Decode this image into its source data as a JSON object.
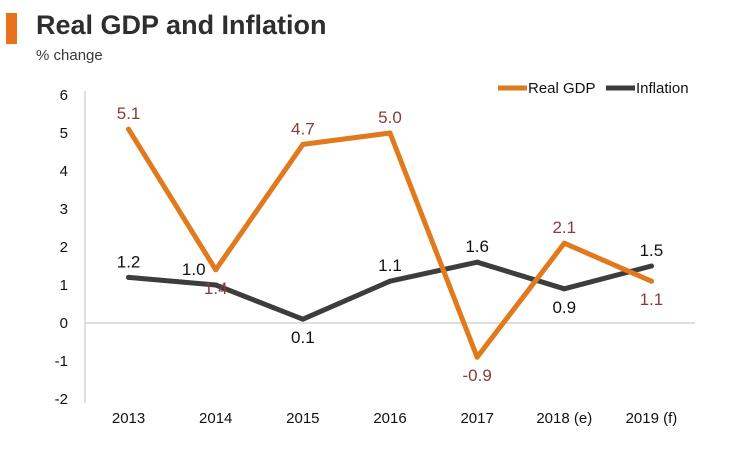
{
  "header": {
    "title": "Real GDP and Inflation",
    "subtitle": "% change"
  },
  "colors": {
    "accent": "#e8711c",
    "gdp": "#e07a1d",
    "inflation": "#3d3d3d",
    "gdp_label": "#8b3a3a",
    "inflation_label": "#111111",
    "axis_text": "#111111",
    "axis_line": "#bfbfbf"
  },
  "chart_data": {
    "type": "line",
    "categories": [
      "2013",
      "2014",
      "2015",
      "2016",
      "2017",
      "2018 (e)",
      "2019 (f)"
    ],
    "series": [
      {
        "name": "Real GDP",
        "values": [
          5.1,
          1.4,
          4.7,
          5.0,
          -0.9,
          2.1,
          1.1
        ],
        "labels": [
          "5.1",
          "1.4",
          "4.7",
          "5.0",
          "-0.9",
          "2.1",
          "1.1"
        ]
      },
      {
        "name": "Inflation",
        "values": [
          1.2,
          1.0,
          0.1,
          1.1,
          1.6,
          0.9,
          1.5
        ],
        "labels": [
          "1.2",
          "1.0",
          "0.1",
          "1.1",
          "1.6",
          "0.9",
          "1.5"
        ]
      }
    ],
    "y_ticks": [
      "6",
      "5",
      "4",
      "3",
      "2",
      "1",
      "0",
      "-1",
      "-2"
    ],
    "ylim": [
      -2,
      6
    ],
    "grid": false,
    "legend_position": "top-right"
  }
}
